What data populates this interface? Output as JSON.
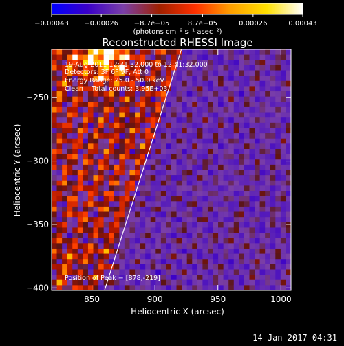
{
  "chart_data": {
    "type": "heatmap",
    "title": "Reconstructed RHESSI Image",
    "xlabel": "Heliocentric X (arcsec)",
    "ylabel": "Heliocentric Y (arcsec)",
    "xlim": [
      818,
      1008
    ],
    "ylim": [
      -402,
      -212
    ],
    "x_ticks": [
      {
        "value": 850,
        "label": "850"
      },
      {
        "value": 900,
        "label": "900"
      },
      {
        "value": 950,
        "label": "950"
      },
      {
        "value": 1000,
        "label": "1000"
      }
    ],
    "y_ticks": [
      {
        "value": -250,
        "label": "−250"
      },
      {
        "value": -300,
        "label": "−300"
      },
      {
        "value": -350,
        "label": "−350"
      },
      {
        "value": -400,
        "label": "−400"
      }
    ],
    "colorbar": {
      "range": [
        -0.00043,
        0.00043
      ],
      "ticks": [
        {
          "value": -0.00043,
          "label": "−0.00043"
        },
        {
          "value": -0.00026,
          "label": "−0.00026"
        },
        {
          "value": -8.7e-05,
          "label": "−8.7e−05"
        },
        {
          "value": 8.7e-05,
          "label": "8.7e−05"
        },
        {
          "value": 0.00026,
          "label": "0.00026"
        },
        {
          "value": 0.00043,
          "label": "0.00043"
        }
      ],
      "unit_label": "(photons cm⁻² s⁻¹ asec⁻²)",
      "colors": [
        "#0000ff",
        "#3a00c8",
        "#7a3fa8",
        "#a02000",
        "#ff3000",
        "#ffa000",
        "#ffe000",
        "#ffffff"
      ]
    },
    "annotations": [
      "19-Aug-2011 12:31:32.000 to 12:41:32.000",
      "Detectors: 3F 6F 9F, Att 0",
      "Energy Range: 25.0 - 50.0 keV",
      "Clean    Total counts: 3.95E+03"
    ],
    "peak_label": "Position of Peak = [878,-219]",
    "limb_line": {
      "x": [
        860,
        921
      ],
      "y": [
        -402,
        -212
      ]
    }
  },
  "footer": {
    "timestamp": "14-Jan-2017 04:31"
  }
}
